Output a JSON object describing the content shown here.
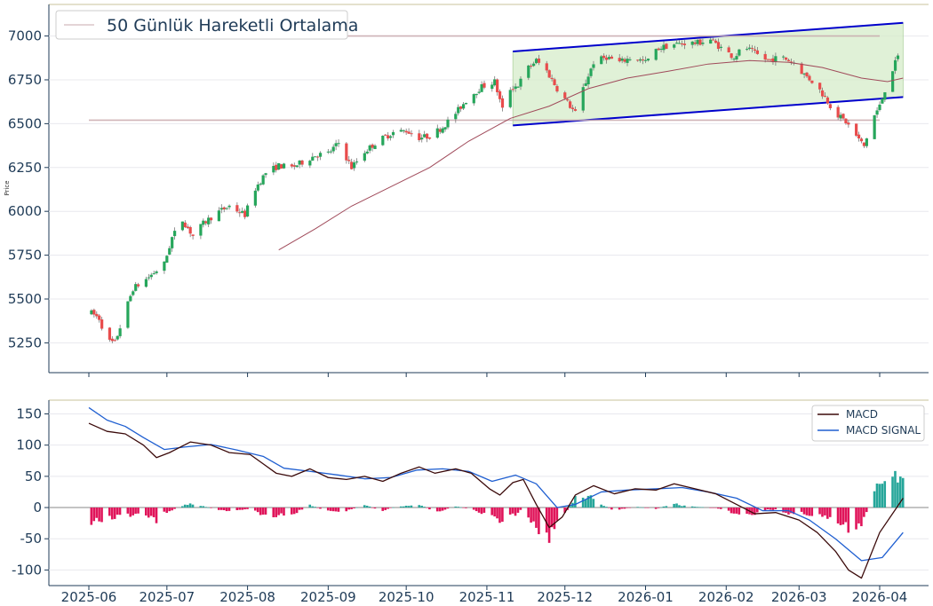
{
  "chart_data": [
    {
      "type": "candlestick",
      "ylabel": "Price",
      "ylim": [
        5080,
        7180
      ],
      "y_ticks": [
        5250,
        5500,
        5750,
        6000,
        6250,
        6500,
        6750,
        7000
      ],
      "legend": {
        "entry": "50 Günlük Hareketli Ortalama",
        "position": "top-left"
      },
      "colors": {
        "up": "#26a65b",
        "down": "#e84c4c",
        "ma": "#a04a5a",
        "channel": "#0000cc",
        "channel_fill": "#d6ecc9",
        "level": "#c8a8ac"
      },
      "horizontal_levels": [
        7000,
        6520
      ],
      "channel": {
        "upper": [
          [
            "2025-11-11",
            6912
          ],
          [
            "2026-04-10",
            7075
          ]
        ],
        "lower": [
          [
            "2025-11-11",
            6490
          ],
          [
            "2026-04-10",
            6652
          ]
        ]
      },
      "price_anchors": [
        [
          "2025-06-02",
          5420
        ],
        [
          "2025-06-05",
          5390
        ],
        [
          "2025-06-08",
          5260
        ],
        [
          "2025-06-11",
          5250
        ],
        [
          "2025-06-15",
          5430
        ],
        [
          "2025-06-18",
          5560
        ],
        [
          "2025-06-22",
          5600
        ],
        [
          "2025-06-26",
          5650
        ],
        [
          "2025-06-30",
          5700
        ],
        [
          "2025-07-03",
          5850
        ],
        [
          "2025-07-07",
          5950
        ],
        [
          "2025-07-11",
          5860
        ],
        [
          "2025-07-15",
          5930
        ],
        [
          "2025-07-20",
          5990
        ],
        [
          "2025-07-25",
          6030
        ],
        [
          "2025-07-31",
          5980
        ],
        [
          "2025-08-04",
          6130
        ],
        [
          "2025-08-08",
          6220
        ],
        [
          "2025-08-13",
          6260
        ],
        [
          "2025-08-18",
          6250
        ],
        [
          "2025-08-22",
          6280
        ],
        [
          "2025-08-27",
          6320
        ],
        [
          "2025-09-01",
          6330
        ],
        [
          "2025-09-05",
          6390
        ],
        [
          "2025-09-10",
          6250
        ],
        [
          "2025-09-15",
          6340
        ],
        [
          "2025-09-20",
          6400
        ],
        [
          "2025-09-26",
          6450
        ],
        [
          "2025-10-01",
          6460
        ],
        [
          "2025-10-06",
          6420
        ],
        [
          "2025-10-10",
          6430
        ],
        [
          "2025-10-15",
          6480
        ],
        [
          "2025-10-20",
          6560
        ],
        [
          "2025-10-25",
          6650
        ],
        [
          "2025-10-30",
          6710
        ],
        [
          "2025-11-04",
          6740
        ],
        [
          "2025-11-07",
          6580
        ],
        [
          "2025-11-10",
          6700
        ],
        [
          "2025-11-13",
          6720
        ],
        [
          "2025-11-17",
          6820
        ],
        [
          "2025-11-20",
          6860
        ],
        [
          "2025-11-24",
          6800
        ],
        [
          "2025-11-28",
          6700
        ],
        [
          "2025-12-02",
          6620
        ],
        [
          "2025-12-05",
          6560
        ],
        [
          "2025-12-08",
          6700
        ],
        [
          "2025-12-12",
          6850
        ],
        [
          "2025-12-17",
          6880
        ],
        [
          "2025-12-22",
          6850
        ],
        [
          "2025-12-27",
          6880
        ],
        [
          "2026-01-01",
          6850
        ],
        [
          "2026-01-06",
          6930
        ],
        [
          "2026-01-11",
          6950
        ],
        [
          "2026-01-16",
          6960
        ],
        [
          "2026-01-21",
          6960
        ],
        [
          "2026-01-26",
          6980
        ],
        [
          "2026-01-31",
          6920
        ],
        [
          "2026-02-04",
          6880
        ],
        [
          "2026-02-08",
          6940
        ],
        [
          "2026-02-12",
          6900
        ],
        [
          "2026-02-17",
          6860
        ],
        [
          "2026-02-22",
          6880
        ],
        [
          "2026-02-27",
          6850
        ],
        [
          "2026-03-03",
          6780
        ],
        [
          "2026-03-07",
          6730
        ],
        [
          "2026-03-11",
          6650
        ],
        [
          "2026-03-15",
          6560
        ],
        [
          "2026-03-19",
          6510
        ],
        [
          "2026-03-23",
          6430
        ],
        [
          "2026-03-26",
          6370
        ],
        [
          "2026-03-29",
          6520
        ],
        [
          "2026-04-01",
          6600
        ],
        [
          "2026-04-04",
          6740
        ],
        [
          "2026-04-08",
          6880
        ]
      ],
      "ma_anchors": [
        [
          "2025-08-13",
          5780
        ],
        [
          "2025-08-27",
          5900
        ],
        [
          "2025-09-10",
          6030
        ],
        [
          "2025-09-25",
          6140
        ],
        [
          "2025-10-10",
          6250
        ],
        [
          "2025-10-25",
          6400
        ],
        [
          "2025-11-10",
          6530
        ],
        [
          "2025-11-25",
          6600
        ],
        [
          "2025-12-10",
          6700
        ],
        [
          "2025-12-25",
          6760
        ],
        [
          "2026-01-10",
          6800
        ],
        [
          "2026-01-25",
          6840
        ],
        [
          "2026-02-10",
          6860
        ],
        [
          "2026-02-25",
          6850
        ],
        [
          "2026-03-10",
          6820
        ],
        [
          "2026-03-25",
          6760
        ],
        [
          "2026-04-04",
          6740
        ],
        [
          "2026-04-10",
          6760
        ]
      ]
    },
    {
      "type": "line",
      "ylim": [
        -125,
        172
      ],
      "y_ticks": [
        -100,
        -50,
        0,
        50,
        100,
        150
      ],
      "x_ticks": [
        "2025-06",
        "2025-07",
        "2025-08",
        "2025-09",
        "2025-10",
        "2025-11",
        "2025-12",
        "2026-01",
        "2026-02",
        "2026-03",
        "2026-04"
      ],
      "legend_position": "top-right",
      "colors": {
        "macd": "#3b0a0a",
        "signal": "#1f5fd1",
        "hist_pos": "#26a69a",
        "hist_neg": "#e0145a"
      },
      "series": [
        {
          "name": "MACD",
          "points": [
            [
              "2025-06-01",
              135
            ],
            [
              "2025-06-08",
              122
            ],
            [
              "2025-06-15",
              118
            ],
            [
              "2025-06-22",
              100
            ],
            [
              "2025-06-27",
              80
            ],
            [
              "2025-07-02",
              88
            ],
            [
              "2025-07-10",
              105
            ],
            [
              "2025-07-18",
              100
            ],
            [
              "2025-07-25",
              88
            ],
            [
              "2025-08-02",
              85
            ],
            [
              "2025-08-07",
              70
            ],
            [
              "2025-08-12",
              55
            ],
            [
              "2025-08-18",
              50
            ],
            [
              "2025-08-25",
              62
            ],
            [
              "2025-09-01",
              48
            ],
            [
              "2025-09-08",
              45
            ],
            [
              "2025-09-15",
              50
            ],
            [
              "2025-09-22",
              42
            ],
            [
              "2025-09-29",
              55
            ],
            [
              "2025-10-06",
              65
            ],
            [
              "2025-10-12",
              55
            ],
            [
              "2025-10-20",
              62
            ],
            [
              "2025-10-26",
              55
            ],
            [
              "2025-11-02",
              30
            ],
            [
              "2025-11-06",
              20
            ],
            [
              "2025-11-11",
              40
            ],
            [
              "2025-11-15",
              45
            ],
            [
              "2025-11-20",
              5
            ],
            [
              "2025-11-25",
              -32
            ],
            [
              "2025-11-30",
              -15
            ],
            [
              "2025-12-05",
              20
            ],
            [
              "2025-12-12",
              35
            ],
            [
              "2025-12-20",
              22
            ],
            [
              "2025-12-28",
              30
            ],
            [
              "2026-01-05",
              28
            ],
            [
              "2026-01-12",
              38
            ],
            [
              "2026-01-20",
              30
            ],
            [
              "2026-01-28",
              22
            ],
            [
              "2026-02-05",
              5
            ],
            [
              "2026-02-12",
              -10
            ],
            [
              "2026-02-20",
              -8
            ],
            [
              "2026-03-01",
              -20
            ],
            [
              "2026-03-08",
              -40
            ],
            [
              "2026-03-15",
              -70
            ],
            [
              "2026-03-20",
              -100
            ],
            [
              "2026-03-25",
              -113
            ],
            [
              "2026-04-01",
              -40
            ],
            [
              "2026-04-10",
              15
            ]
          ]
        },
        {
          "name": "MACD SIGNAL",
          "points": [
            [
              "2025-06-01",
              160
            ],
            [
              "2025-06-08",
              140
            ],
            [
              "2025-06-15",
              130
            ],
            [
              "2025-06-22",
              112
            ],
            [
              "2025-06-30",
              93
            ],
            [
              "2025-07-08",
              97
            ],
            [
              "2025-07-18",
              101
            ],
            [
              "2025-07-28",
              92
            ],
            [
              "2025-08-07",
              82
            ],
            [
              "2025-08-15",
              63
            ],
            [
              "2025-08-25",
              58
            ],
            [
              "2025-09-05",
              52
            ],
            [
              "2025-09-15",
              46
            ],
            [
              "2025-09-25",
              48
            ],
            [
              "2025-10-05",
              60
            ],
            [
              "2025-10-15",
              62
            ],
            [
              "2025-10-25",
              58
            ],
            [
              "2025-11-03",
              42
            ],
            [
              "2025-11-12",
              52
            ],
            [
              "2025-11-20",
              38
            ],
            [
              "2025-11-28",
              0
            ],
            [
              "2025-12-05",
              5
            ],
            [
              "2025-12-15",
              25
            ],
            [
              "2025-12-25",
              28
            ],
            [
              "2026-01-05",
              30
            ],
            [
              "2026-01-15",
              32
            ],
            [
              "2026-01-25",
              25
            ],
            [
              "2026-02-05",
              15
            ],
            [
              "2026-02-15",
              -5
            ],
            [
              "2026-02-25",
              -5
            ],
            [
              "2026-03-05",
              -20
            ],
            [
              "2026-03-15",
              -50
            ],
            [
              "2026-03-25",
              -85
            ],
            [
              "2026-04-02",
              -80
            ],
            [
              "2026-04-10",
              -40
            ]
          ]
        }
      ]
    }
  ]
}
